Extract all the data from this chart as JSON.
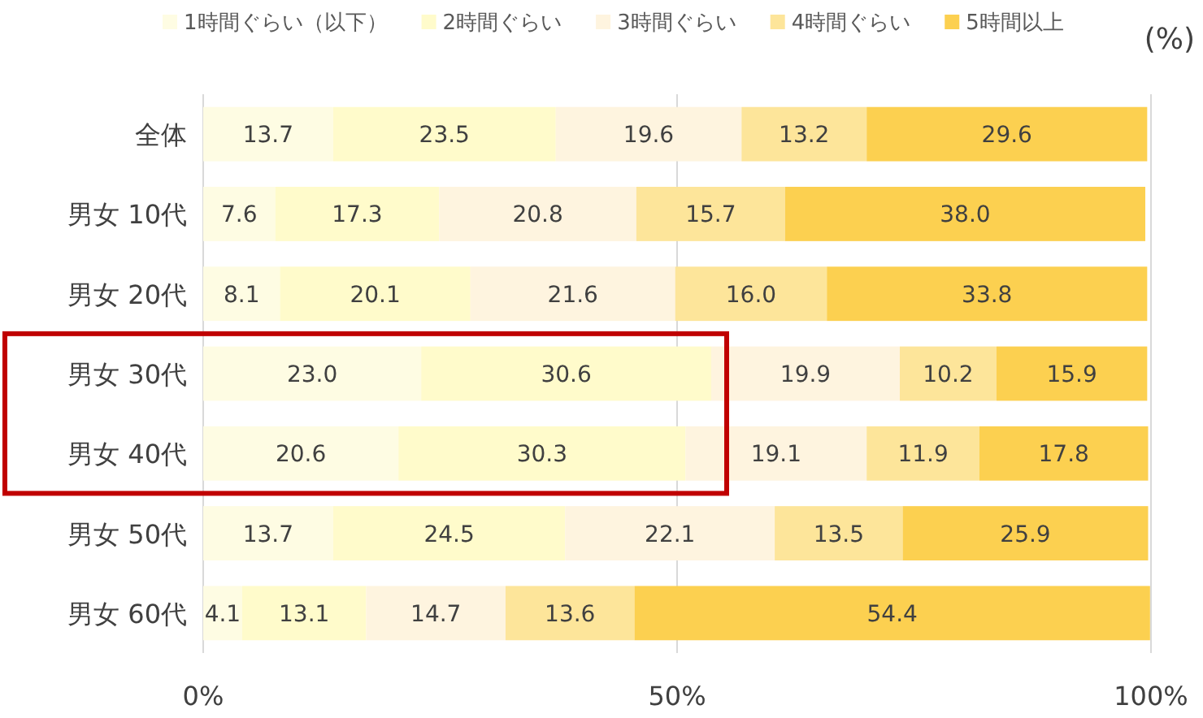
{
  "chart_data": {
    "type": "bar",
    "orientation": "horizontal",
    "stacked": true,
    "categories": [
      "全体",
      "男女 10代",
      "男女 20代",
      "男女 30代",
      "男女 40代",
      "男女 50代",
      "男女 60代"
    ],
    "series": [
      {
        "name": "1時間ぐらい（以下）",
        "color": "#fefce3",
        "values": [
          13.7,
          7.6,
          8.1,
          23.0,
          20.6,
          13.7,
          4.1
        ],
        "value_labels": [
          "13.7",
          "7.6",
          "8.1",
          "23.0",
          "20.6",
          "13.7",
          "4.1"
        ]
      },
      {
        "name": "2時間ぐらい",
        "color": "#fffbcb",
        "values": [
          23.5,
          17.3,
          20.1,
          30.6,
          30.3,
          24.5,
          13.1
        ],
        "value_labels": [
          "23.5",
          "17.3",
          "20.1",
          "30.6",
          "30.3",
          "24.5",
          "13.1"
        ]
      },
      {
        "name": "3時間ぐらい",
        "color": "#fef4df",
        "values": [
          19.6,
          20.8,
          21.6,
          19.9,
          19.1,
          22.1,
          14.7
        ],
        "value_labels": [
          "19.6",
          "20.8",
          "21.6",
          "19.9",
          "19.1",
          "22.1",
          "14.7"
        ]
      },
      {
        "name": "4時間ぐらい",
        "color": "#fde59a",
        "values": [
          13.2,
          15.7,
          16.0,
          10.2,
          11.9,
          13.5,
          13.6
        ],
        "value_labels": [
          "13.2",
          "15.7",
          "16.0",
          "10.2",
          "11.9",
          "13.5",
          "13.6"
        ]
      },
      {
        "name": "5時間以上",
        "color": "#fcd050",
        "values": [
          29.6,
          38.0,
          33.8,
          15.9,
          17.8,
          25.9,
          54.4
        ],
        "value_labels": [
          "29.6",
          "38.0",
          "33.8",
          "15.9",
          "17.8",
          "25.9",
          "54.4"
        ]
      }
    ],
    "xlim": [
      0,
      100
    ],
    "xticks": [
      {
        "value": 0,
        "label": "0%"
      },
      {
        "value": 50,
        "label": "50%"
      },
      {
        "value": 100,
        "label": "100%"
      }
    ],
    "grid": "x",
    "legend": "top",
    "annotations": [
      "(%)"
    ]
  }
}
